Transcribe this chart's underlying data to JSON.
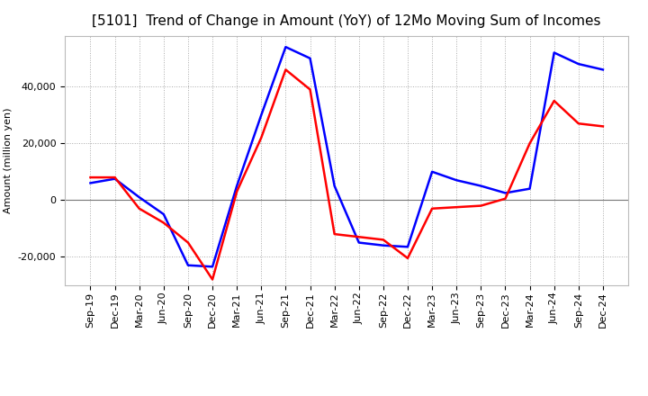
{
  "title": "[5101]  Trend of Change in Amount (YoY) of 12Mo Moving Sum of Incomes",
  "ylabel": "Amount (million yen)",
  "x_labels": [
    "Sep-19",
    "Dec-19",
    "Mar-20",
    "Jun-20",
    "Sep-20",
    "Dec-20",
    "Mar-21",
    "Jun-21",
    "Sep-21",
    "Dec-21",
    "Mar-22",
    "Jun-22",
    "Sep-22",
    "Dec-22",
    "Mar-23",
    "Jun-23",
    "Sep-23",
    "Dec-23",
    "Mar-24",
    "Jun-24",
    "Sep-24",
    "Dec-24"
  ],
  "ordinary_income": [
    6000,
    7500,
    1000,
    -5000,
    -23000,
    -23500,
    5000,
    30000,
    54000,
    50000,
    5000,
    -15000,
    -16000,
    -16500,
    10000,
    7000,
    5000,
    2500,
    4000,
    52000,
    48000,
    46000
  ],
  "net_income": [
    8000,
    8000,
    -3000,
    -8000,
    -15000,
    -28000,
    3000,
    22000,
    46000,
    39000,
    -12000,
    -13000,
    -14000,
    -20500,
    -3000,
    -2500,
    -2000,
    500,
    20000,
    35000,
    27000,
    26000
  ],
  "ordinary_color": "#0000FF",
  "net_color": "#FF0000",
  "line_width": 1.8,
  "ylim": [
    -30000,
    58000
  ],
  "yticks": [
    -20000,
    0,
    20000,
    40000
  ],
  "grid_color": "#aaaaaa",
  "background_color": "#ffffff",
  "zero_line_color": "#777777",
  "title_fontsize": 11,
  "ylabel_fontsize": 8,
  "tick_fontsize": 8,
  "legend_fontsize": 9
}
